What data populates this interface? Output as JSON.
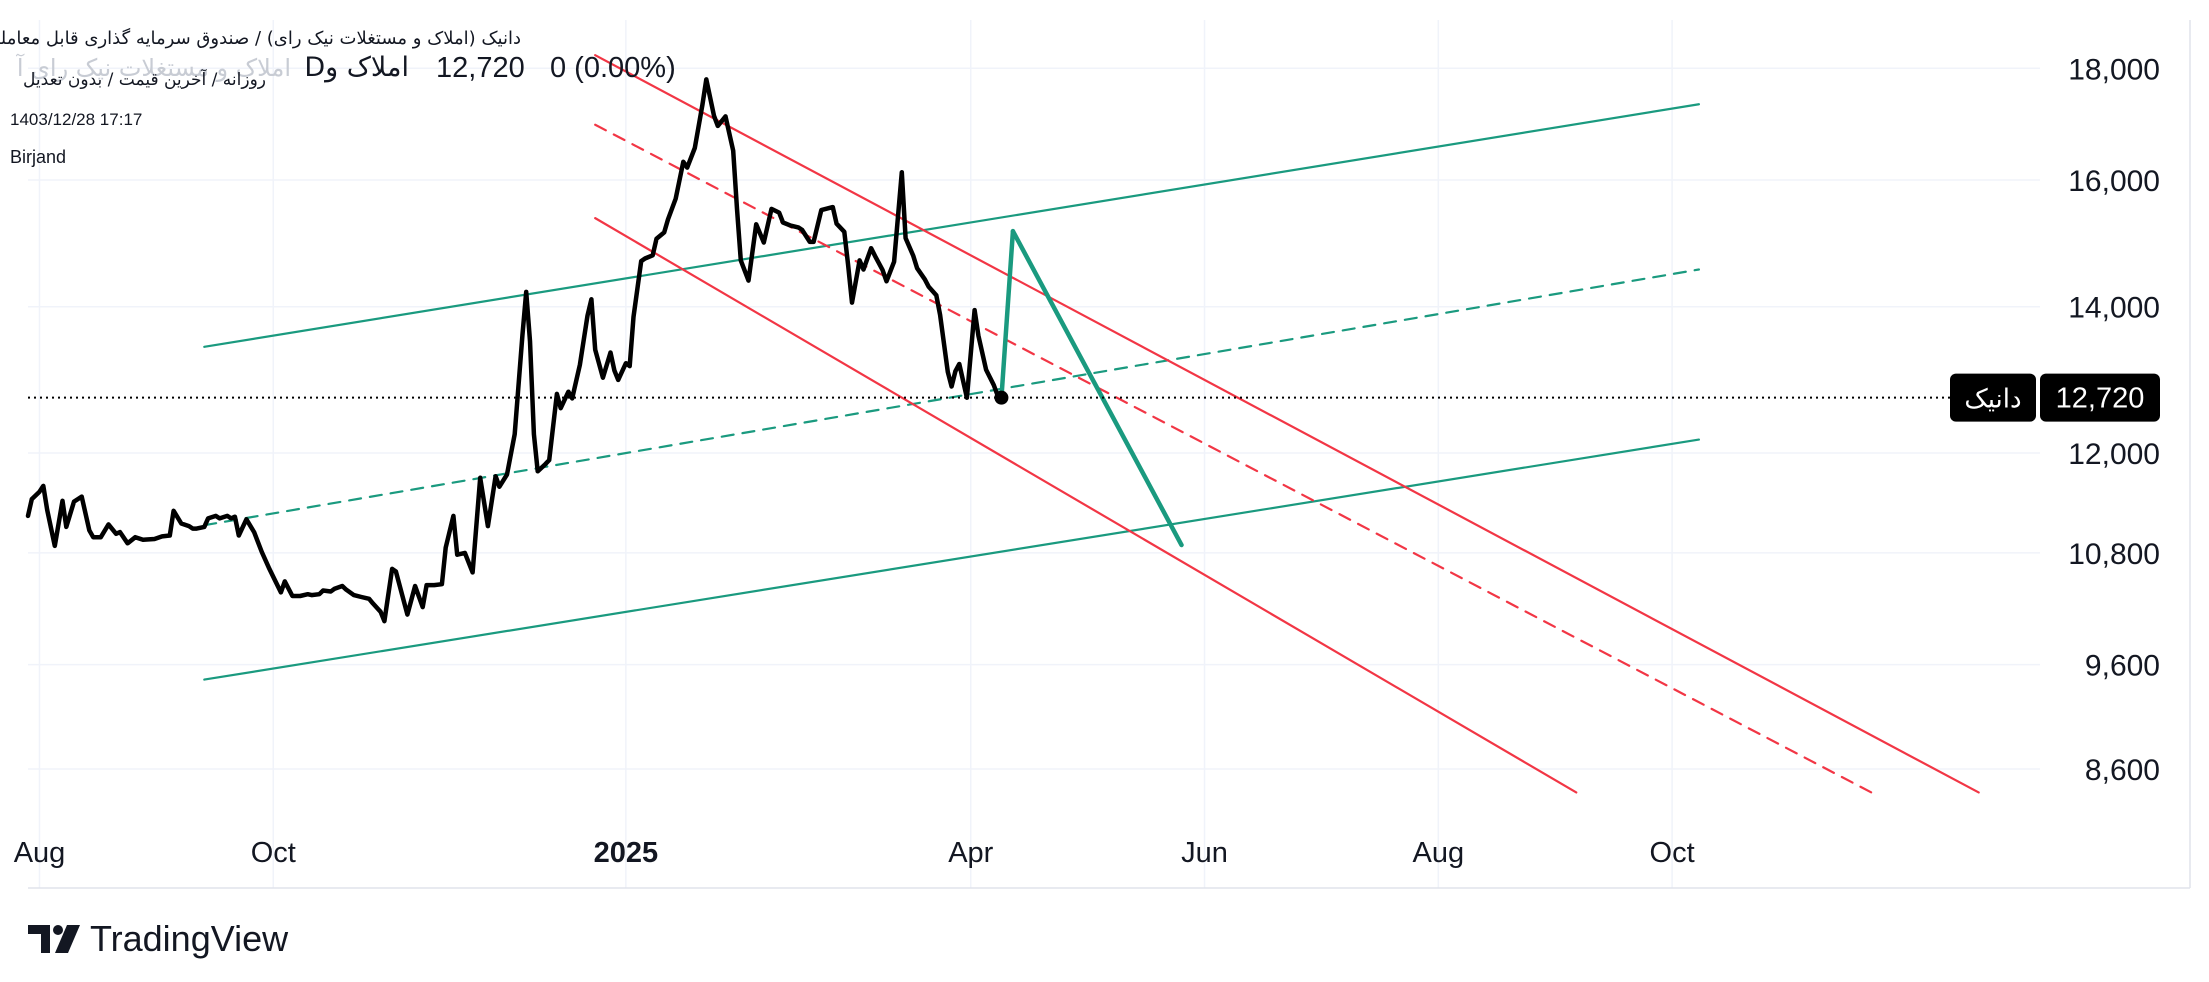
{
  "header": {
    "title": "دانیک (املاک و مستغلات نیک رای) / صندوق سرمایه گذاری قابل معامله",
    "ghost_text": "املاک و مستغلات نیک رای آ",
    "symbol_line": "املاک و",
    "symbol_prefix": "D",
    "price": "12,720",
    "change": "0 (0.00%)",
    "subtitle": "روزانه / آخرین قیمت / بدون تعدیل",
    "date": "1403/12/28 17:17",
    "author": "Birjand"
  },
  "brand": {
    "name": "TradingView",
    "icon": "tradingview-logo-icon"
  },
  "colors": {
    "price_line": "#000000",
    "channel_green": "#1a9a7f",
    "channel_red": "#f23645",
    "grid": "#f0f3fa",
    "tag_bg": "#000000",
    "tag_text": "#ffffff"
  },
  "chart_data": {
    "type": "line",
    "title": "",
    "xlabel": "",
    "ylabel": "",
    "x_ticks": [
      {
        "date": "2024-08-01",
        "label": "Aug",
        "bold": false
      },
      {
        "date": "2024-10-01",
        "label": "Oct",
        "bold": false
      },
      {
        "date": "2025-01-01",
        "label": "2025",
        "bold": true
      },
      {
        "date": "2025-04-01",
        "label": "Apr",
        "bold": false
      },
      {
        "date": "2025-06-01",
        "label": "Jun",
        "bold": false
      },
      {
        "date": "2025-08-01",
        "label": "Aug",
        "bold": false
      },
      {
        "date": "2025-10-01",
        "label": "Oct",
        "bold": false
      }
    ],
    "y_ticks": [
      {
        "value": 18000,
        "label": "18,000"
      },
      {
        "value": 16000,
        "label": "16,000"
      },
      {
        "value": 14000,
        "label": "14,000"
      },
      {
        "value": 12000,
        "label": "12,000"
      },
      {
        "value": 10800,
        "label": "10,800"
      },
      {
        "value": 9600,
        "label": "9,600"
      },
      {
        "value": 8600,
        "label": "8,600"
      }
    ],
    "log_scale": true,
    "xlim": [
      "2024-07-29",
      "2026-01-05"
    ],
    "ylim": [
      8150,
      18350
    ],
    "grid": true,
    "last_price": {
      "value": 12720,
      "label": "12,720",
      "symbol": "دانیک"
    },
    "series": [
      {
        "name": "دانیک",
        "points": [
          [
            "2024-07-29",
            11230
          ],
          [
            "2024-07-30",
            11430
          ],
          [
            "2024-08-01",
            11520
          ],
          [
            "2024-08-02",
            11590
          ],
          [
            "2024-08-03",
            11300
          ],
          [
            "2024-08-05",
            10880
          ],
          [
            "2024-08-07",
            11410
          ],
          [
            "2024-08-08",
            11100
          ],
          [
            "2024-08-10",
            11400
          ],
          [
            "2024-08-12",
            11460
          ],
          [
            "2024-08-14",
            11060
          ],
          [
            "2024-08-15",
            10980
          ],
          [
            "2024-08-17",
            10980
          ],
          [
            "2024-08-19",
            11130
          ],
          [
            "2024-08-21",
            11020
          ],
          [
            "2024-08-22",
            11040
          ],
          [
            "2024-08-24",
            10910
          ],
          [
            "2024-08-26",
            10980
          ],
          [
            "2024-08-28",
            10950
          ],
          [
            "2024-08-31",
            10960
          ],
          [
            "2024-09-02",
            10990
          ],
          [
            "2024-09-04",
            11000
          ],
          [
            "2024-09-05",
            11290
          ],
          [
            "2024-09-07",
            11140
          ],
          [
            "2024-09-09",
            11110
          ],
          [
            "2024-09-10",
            11080
          ],
          [
            "2024-09-11",
            11080
          ],
          [
            "2024-09-13",
            11100
          ],
          [
            "2024-09-14",
            11200
          ],
          [
            "2024-09-16",
            11230
          ],
          [
            "2024-09-17",
            11200
          ],
          [
            "2024-09-19",
            11230
          ],
          [
            "2024-09-20",
            11200
          ],
          [
            "2024-09-21",
            11220
          ],
          [
            "2024-09-22",
            11000
          ],
          [
            "2024-09-24",
            11190
          ],
          [
            "2024-09-26",
            11040
          ],
          [
            "2024-09-28",
            10810
          ],
          [
            "2024-09-30",
            10620
          ],
          [
            "2024-10-01",
            10530
          ],
          [
            "2024-10-03",
            10360
          ],
          [
            "2024-10-04",
            10480
          ],
          [
            "2024-10-06",
            10320
          ],
          [
            "2024-10-08",
            10320
          ],
          [
            "2024-10-10",
            10340
          ],
          [
            "2024-10-11",
            10330
          ],
          [
            "2024-10-13",
            10340
          ],
          [
            "2024-10-14",
            10380
          ],
          [
            "2024-10-16",
            10370
          ],
          [
            "2024-10-17",
            10400
          ],
          [
            "2024-10-19",
            10430
          ],
          [
            "2024-10-20",
            10390
          ],
          [
            "2024-10-22",
            10330
          ],
          [
            "2024-10-24",
            10310
          ],
          [
            "2024-10-26",
            10290
          ],
          [
            "2024-10-27",
            10240
          ],
          [
            "2024-10-29",
            10150
          ],
          [
            "2024-10-30",
            10050
          ],
          [
            "2024-11-01",
            10620
          ],
          [
            "2024-11-02",
            10590
          ],
          [
            "2024-11-05",
            10120
          ],
          [
            "2024-11-07",
            10430
          ],
          [
            "2024-11-09",
            10200
          ],
          [
            "2024-11-10",
            10440
          ],
          [
            "2024-11-12",
            10440
          ],
          [
            "2024-11-14",
            10450
          ],
          [
            "2024-11-15",
            10860
          ],
          [
            "2024-11-17",
            11230
          ],
          [
            "2024-11-18",
            10780
          ],
          [
            "2024-11-20",
            10800
          ],
          [
            "2024-11-22",
            10580
          ],
          [
            "2024-11-24",
            11690
          ],
          [
            "2024-11-26",
            11110
          ],
          [
            "2024-11-28",
            11710
          ],
          [
            "2024-11-29",
            11580
          ],
          [
            "2024-12-01",
            11730
          ],
          [
            "2024-12-03",
            12240
          ],
          [
            "2024-12-05",
            13580
          ],
          [
            "2024-12-06",
            14220
          ],
          [
            "2024-12-07",
            13500
          ],
          [
            "2024-12-08",
            12240
          ],
          [
            "2024-12-09",
            11770
          ],
          [
            "2024-12-11",
            11860
          ],
          [
            "2024-12-12",
            11910
          ],
          [
            "2024-12-14",
            12770
          ],
          [
            "2024-12-15",
            12580
          ],
          [
            "2024-12-17",
            12800
          ],
          [
            "2024-12-18",
            12710
          ],
          [
            "2024-12-20",
            13170
          ],
          [
            "2024-12-22",
            13870
          ],
          [
            "2024-12-23",
            14110
          ],
          [
            "2024-12-24",
            13380
          ],
          [
            "2024-12-26",
            12990
          ],
          [
            "2024-12-28",
            13340
          ],
          [
            "2024-12-29",
            13090
          ],
          [
            "2024-12-30",
            12960
          ],
          [
            "2025-01-01",
            13190
          ],
          [
            "2025-01-02",
            13150
          ],
          [
            "2025-01-03",
            13850
          ],
          [
            "2025-01-05",
            14690
          ],
          [
            "2025-01-06",
            14730
          ],
          [
            "2025-01-08",
            14780
          ],
          [
            "2025-01-09",
            15040
          ],
          [
            "2025-01-11",
            15140
          ],
          [
            "2025-01-12",
            15350
          ],
          [
            "2025-01-14",
            15690
          ],
          [
            "2025-01-16",
            16310
          ],
          [
            "2025-01-17",
            16210
          ],
          [
            "2025-01-19",
            16550
          ],
          [
            "2025-01-21",
            17330
          ],
          [
            "2025-01-22",
            17790
          ],
          [
            "2025-01-24",
            17120
          ],
          [
            "2025-01-25",
            16940
          ],
          [
            "2025-01-27",
            17110
          ],
          [
            "2025-01-29",
            16500
          ],
          [
            "2025-01-30",
            15520
          ],
          [
            "2025-01-31",
            14700
          ],
          [
            "2025-02-02",
            14390
          ],
          [
            "2025-02-04",
            15270
          ],
          [
            "2025-02-06",
            14980
          ],
          [
            "2025-02-08",
            15520
          ],
          [
            "2025-02-10",
            15460
          ],
          [
            "2025-02-11",
            15300
          ],
          [
            "2025-02-13",
            15250
          ],
          [
            "2025-02-15",
            15220
          ],
          [
            "2025-02-16",
            15180
          ],
          [
            "2025-02-18",
            14990
          ],
          [
            "2025-02-19",
            14990
          ],
          [
            "2025-02-21",
            15500
          ],
          [
            "2025-02-24",
            15550
          ],
          [
            "2025-02-25",
            15280
          ],
          [
            "2025-02-27",
            15150
          ],
          [
            "2025-02-28",
            14630
          ],
          [
            "2025-03-01",
            14060
          ],
          [
            "2025-03-03",
            14700
          ],
          [
            "2025-03-04",
            14560
          ],
          [
            "2025-03-06",
            14890
          ],
          [
            "2025-03-07",
            14770
          ],
          [
            "2025-03-09",
            14550
          ],
          [
            "2025-03-10",
            14380
          ],
          [
            "2025-03-12",
            14680
          ],
          [
            "2025-03-14",
            16130
          ],
          [
            "2025-03-15",
            15050
          ],
          [
            "2025-03-17",
            14770
          ],
          [
            "2025-03-18",
            14580
          ],
          [
            "2025-03-20",
            14410
          ],
          [
            "2025-03-21",
            14300
          ],
          [
            "2025-03-23",
            14170
          ],
          [
            "2025-03-24",
            13880
          ],
          [
            "2025-03-26",
            13070
          ],
          [
            "2025-03-27",
            12870
          ],
          [
            "2025-03-28",
            13080
          ],
          [
            "2025-03-29",
            13180
          ],
          [
            "2025-03-31",
            12720
          ],
          [
            "2025-04-02",
            13950
          ],
          [
            "2025-04-03",
            13580
          ],
          [
            "2025-04-05",
            13100
          ],
          [
            "2025-04-07",
            12890
          ],
          [
            "2025-04-08",
            12750
          ],
          [
            "2025-04-09",
            12720
          ]
        ]
      }
    ],
    "drawings": [
      {
        "name": "green-channel-upper-line",
        "color": "green",
        "dashed": false,
        "from": [
          "2024-09-13",
          13420
        ],
        "to": [
          "2025-10-08",
          17330
        ]
      },
      {
        "name": "green-channel-middle-line",
        "color": "green",
        "dashed": true,
        "from": [
          "2024-09-13",
          11120
        ],
        "to": [
          "2025-10-08",
          14560
        ]
      },
      {
        "name": "green-channel-lower-line",
        "color": "green",
        "dashed": false,
        "from": [
          "2024-09-13",
          9450
        ],
        "to": [
          "2025-10-08",
          12170
        ]
      },
      {
        "name": "red-channel-upper-line",
        "color": "red",
        "dashed": false,
        "from": [
          "2024-12-24",
          18250
        ],
        "to": [
          "2025-12-20",
          8390
        ]
      },
      {
        "name": "red-channel-middle-line",
        "color": "red",
        "dashed": true,
        "from": [
          "2024-12-24",
          16960
        ],
        "to": [
          "2025-11-22",
          8390
        ]
      },
      {
        "name": "red-channel-lower-line",
        "color": "red",
        "dashed": false,
        "from": [
          "2024-12-24",
          15370
        ],
        "to": [
          "2025-09-06",
          8390
        ]
      },
      {
        "name": "projection-up-line",
        "color": "green",
        "dashed": false,
        "bold": true,
        "from": [
          "2025-04-09",
          12720
        ],
        "to": [
          "2025-04-12",
          15160
        ]
      },
      {
        "name": "projection-down-line",
        "color": "green",
        "dashed": false,
        "bold": true,
        "from": [
          "2025-04-12",
          15160
        ],
        "to": [
          "2025-05-26",
          10890
        ]
      }
    ]
  }
}
